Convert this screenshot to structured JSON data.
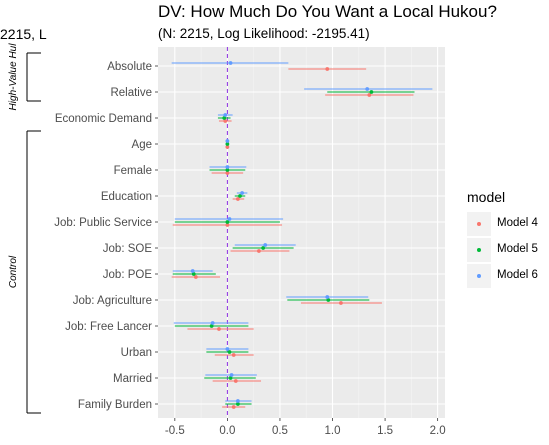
{
  "header": {
    "cut_label": "2215, L",
    "title": "DV: How Much Do You Want a Local Hukou?",
    "subtitle": "(N: 2215, Log Likelihood: -2195.41)"
  },
  "legend": {
    "title": "model",
    "items": [
      {
        "label": "Model 4",
        "color": "#F8766D"
      },
      {
        "label": "Model 5",
        "color": "#00BA38"
      },
      {
        "label": "Model 6",
        "color": "#619CFF"
      }
    ]
  },
  "chart_data": {
    "type": "scatter",
    "xlim": [
      -0.66,
      2.07
    ],
    "x_ticks": [
      "-0.5",
      "0.0",
      "0.5",
      "1.0",
      "1.5",
      "2.0"
    ],
    "x_tick_values": [
      -0.5,
      0.0,
      0.5,
      1.0,
      1.5,
      2.0
    ],
    "reference_line": 0,
    "categories": [
      "Absolute",
      "Relative",
      "Economic Demand",
      "Age",
      "Female",
      "Education",
      "Job: Public Service",
      "Job: SOE",
      "Job: POE",
      "Job: Agriculture",
      "Job: Free Lancer",
      "Urban",
      "Married",
      "Family Burden"
    ],
    "groups": [
      {
        "label": "High-Value Hukou",
        "display": "High-Value Hul",
        "from": "Absolute",
        "to": "Relative"
      },
      {
        "label": "Control",
        "display": "Control",
        "from": "Age",
        "to": "Family Burden"
      }
    ],
    "series": [
      {
        "name": "Model 4",
        "estimates": [
          0.95,
          1.35,
          -0.02,
          0.0,
          0.0,
          0.1,
          0.0,
          0.3,
          -0.3,
          1.08,
          -0.08,
          0.06,
          0.08,
          0.06
        ],
        "ci_low": [
          0.58,
          0.93,
          -0.08,
          -0.01,
          -0.15,
          0.05,
          -0.52,
          0.03,
          -0.53,
          0.7,
          -0.38,
          -0.12,
          -0.14,
          -0.05
        ],
        "ci_high": [
          1.32,
          1.77,
          0.04,
          0.01,
          0.15,
          0.16,
          0.52,
          0.59,
          -0.07,
          1.47,
          0.25,
          0.25,
          0.32,
          0.17
        ]
      },
      {
        "name": "Model 5",
        "estimates": [
          null,
          1.37,
          -0.03,
          0.0,
          0.0,
          0.12,
          0.0,
          0.34,
          -0.32,
          0.96,
          -0.15,
          0.02,
          0.03,
          0.1
        ],
        "ci_low": [
          null,
          0.95,
          -0.09,
          -0.01,
          -0.17,
          0.07,
          -0.5,
          0.05,
          -0.52,
          0.57,
          -0.5,
          -0.2,
          -0.22,
          -0.02
        ],
        "ci_high": [
          null,
          1.78,
          0.03,
          0.01,
          0.17,
          0.17,
          0.5,
          0.63,
          -0.11,
          1.35,
          0.2,
          0.2,
          0.27,
          0.23
        ]
      },
      {
        "name": "Model 6",
        "estimates": [
          0.03,
          1.33,
          -0.02,
          0.0,
          0.0,
          0.14,
          0.02,
          0.36,
          -0.33,
          0.95,
          -0.14,
          0.0,
          0.04,
          0.1
        ],
        "ci_low": [
          -0.53,
          0.73,
          -0.09,
          -0.01,
          -0.17,
          0.09,
          -0.5,
          0.07,
          -0.52,
          0.56,
          -0.51,
          -0.2,
          -0.21,
          -0.02
        ],
        "ci_high": [
          0.58,
          1.95,
          0.05,
          0.01,
          0.18,
          0.19,
          0.53,
          0.65,
          -0.14,
          1.34,
          0.2,
          0.2,
          0.28,
          0.23
        ]
      }
    ]
  }
}
